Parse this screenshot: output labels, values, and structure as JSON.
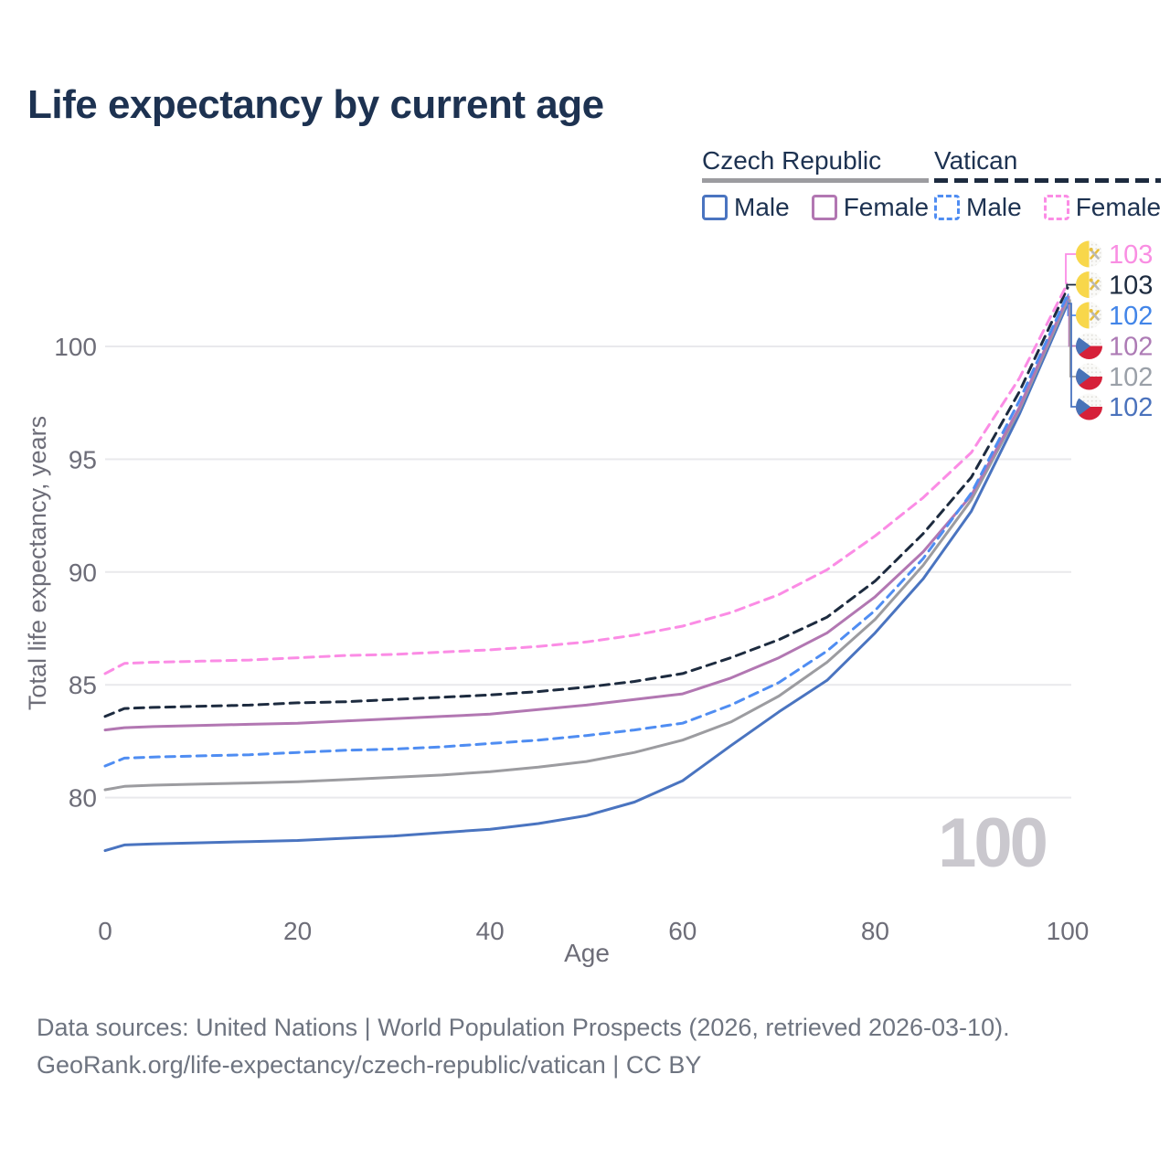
{
  "title": "Life expectancy by current age",
  "legend": {
    "groups": [
      {
        "label": "Czech Republic",
        "line_style": "solid",
        "underline_color": "#9c9ca0",
        "items": [
          {
            "label": "Male",
            "color": "#4a74c0",
            "dashed": false
          },
          {
            "label": "Female",
            "color": "#b277b2",
            "dashed": false
          }
        ]
      },
      {
        "label": "Vatican",
        "line_style": "dashed",
        "underline_color": "#1d2b3f",
        "items": [
          {
            "label": "Male",
            "color": "#4f8df2",
            "dashed": true
          },
          {
            "label": "Female",
            "color": "#fb8ce5",
            "dashed": true
          }
        ]
      }
    ]
  },
  "watermark": "100",
  "footer": {
    "line1": "Data sources: United Nations | World Population Prospects (2026, retrieved 2026-03-10).",
    "line2": "GeoRank.org/life-expectancy/czech-republic/vatican | CC BY"
  },
  "colors": {
    "title_text": "#1d3251",
    "grid": "#e9e9ec",
    "tick_text": "#6d6d78",
    "watermark_text": "#cac8ce"
  },
  "chart_data": {
    "type": "line",
    "title": "Life expectancy by current age",
    "xlabel": "Age",
    "ylabel": "Total life expectancy, years",
    "x_ticks": [
      0,
      20,
      40,
      60,
      80,
      100
    ],
    "y_ticks": [
      80,
      85,
      90,
      95,
      100
    ],
    "xlim": [
      0,
      100
    ],
    "ylim": [
      76,
      105
    ],
    "grid": true,
    "legend_position": "top-right",
    "x": [
      0,
      2,
      5,
      10,
      15,
      20,
      25,
      30,
      35,
      40,
      45,
      50,
      55,
      60,
      65,
      70,
      75,
      80,
      85,
      90,
      95,
      100
    ],
    "series": [
      {
        "name": "Vatican Female",
        "country": "Vatican",
        "sex": "Female",
        "color": "#fb8ce5",
        "label_color": "#f98ee2",
        "dashed": true,
        "flag": "vatican",
        "end_label": "103",
        "values": [
          85.5,
          85.95,
          86.0,
          86.05,
          86.1,
          86.2,
          86.3,
          86.35,
          86.45,
          86.55,
          86.7,
          86.9,
          87.2,
          87.6,
          88.2,
          89.0,
          90.1,
          91.6,
          93.3,
          95.3,
          98.6,
          102.8
        ]
      },
      {
        "name": "Vatican Both sexes",
        "country": "Vatican",
        "sex": "Both",
        "color": "#1d2b3f",
        "label_color": "#1d2b3f",
        "dashed": true,
        "flag": "vatican",
        "end_label": "103",
        "values": [
          83.6,
          83.95,
          84.0,
          84.05,
          84.1,
          84.2,
          84.25,
          84.35,
          84.45,
          84.55,
          84.7,
          84.9,
          85.15,
          85.5,
          86.2,
          87.0,
          88.0,
          89.6,
          91.7,
          94.2,
          98.0,
          102.6
        ]
      },
      {
        "name": "Vatican Male",
        "country": "Vatican",
        "sex": "Male",
        "color": "#4f8df2",
        "label_color": "#4285e8",
        "dashed": true,
        "flag": "vatican",
        "end_label": "102",
        "values": [
          81.4,
          81.75,
          81.8,
          81.85,
          81.9,
          82.0,
          82.1,
          82.15,
          82.25,
          82.4,
          82.55,
          82.75,
          83.0,
          83.3,
          84.1,
          85.1,
          86.5,
          88.3,
          90.6,
          93.5,
          97.6,
          102.3
        ]
      },
      {
        "name": "Czech Republic Female",
        "country": "Czech Republic",
        "sex": "Female",
        "color": "#b277b2",
        "label_color": "#ad7bb5",
        "dashed": false,
        "flag": "czech",
        "end_label": "102",
        "values": [
          83.0,
          83.1,
          83.15,
          83.2,
          83.25,
          83.3,
          83.4,
          83.5,
          83.6,
          83.7,
          83.9,
          84.1,
          84.35,
          84.6,
          85.3,
          86.2,
          87.3,
          88.9,
          90.9,
          93.4,
          97.3,
          102.2
        ]
      },
      {
        "name": "Czech Republic Both sexes",
        "country": "Czech Republic",
        "sex": "Both",
        "color": "#9c9ca0",
        "label_color": "#9aa0a8",
        "dashed": false,
        "flag": "czech",
        "end_label": "102",
        "values": [
          80.35,
          80.5,
          80.55,
          80.6,
          80.65,
          80.7,
          80.8,
          80.9,
          81.0,
          81.15,
          81.35,
          81.6,
          82.0,
          82.55,
          83.35,
          84.5,
          86.0,
          87.9,
          90.3,
          93.2,
          97.2,
          102.05
        ]
      },
      {
        "name": "Czech Republic Male",
        "country": "Czech Republic",
        "sex": "Male",
        "color": "#4a74c0",
        "label_color": "#4a72bc",
        "dashed": false,
        "flag": "czech",
        "end_label": "102",
        "values": [
          77.65,
          77.9,
          77.95,
          78.0,
          78.05,
          78.1,
          78.2,
          78.3,
          78.45,
          78.6,
          78.85,
          79.2,
          79.8,
          80.75,
          82.3,
          83.8,
          85.2,
          87.3,
          89.7,
          92.7,
          97.0,
          101.9
        ]
      }
    ]
  }
}
